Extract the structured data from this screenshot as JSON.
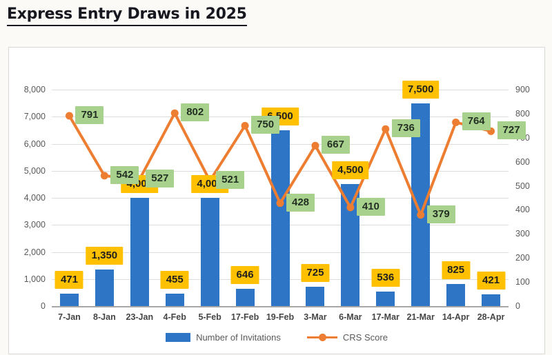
{
  "page": {
    "title": "Express Entry Draws in 2025"
  },
  "chart_data": {
    "type": "combo-bar-line",
    "title": "Express Entry Draws in 2025",
    "categories": [
      "7-Jan",
      "8-Jan",
      "23-Jan",
      "4-Feb",
      "5-Feb",
      "17-Feb",
      "19-Feb",
      "3-Mar",
      "6-Mar",
      "17-Mar",
      "21-Mar",
      "14-Apr",
      "28-Apr"
    ],
    "series": [
      {
        "name": "Number of Invitations",
        "type": "bar",
        "axis": "left",
        "color": "#2e75c6",
        "values": [
          471,
          1350,
          4000,
          455,
          4000,
          646,
          6500,
          725,
          4500,
          536,
          7500,
          825,
          421
        ],
        "labels": [
          "471",
          "1,350",
          "4,000",
          "455",
          "4,000",
          "646",
          "6,500",
          "725",
          "4,500",
          "536",
          "7,500",
          "825",
          "421"
        ],
        "label_bg": "#ffc000"
      },
      {
        "name": "CRS Score",
        "type": "line",
        "axis": "right",
        "color": "#ed7d31",
        "values": [
          791,
          542,
          527,
          802,
          521,
          750,
          428,
          667,
          410,
          736,
          379,
          764,
          727
        ],
        "labels": [
          "791",
          "542",
          "527",
          "802",
          "521",
          "750",
          "428",
          "667",
          "410",
          "736",
          "379",
          "764",
          "727"
        ],
        "label_bg": "#a9d18e"
      }
    ],
    "left_axis": {
      "min": 0,
      "max": 8000,
      "step": 1000,
      "ticks": [
        "0",
        "1,000",
        "2,000",
        "3,000",
        "4,000",
        "5,000",
        "6,000",
        "7,000",
        "8,000"
      ]
    },
    "right_axis": {
      "min": 0,
      "max": 900,
      "step": 100,
      "ticks": [
        "0",
        "100",
        "200",
        "300",
        "400",
        "500",
        "600",
        "700",
        "800",
        "900"
      ]
    },
    "grid": "horizontal",
    "legend_position": "bottom",
    "colors": {
      "gridline": "#dcdcdc",
      "axis_line": "#a6a6a6",
      "bar_label_bg": "#ffc000",
      "crs_label_bg": "#a9d18e"
    }
  }
}
